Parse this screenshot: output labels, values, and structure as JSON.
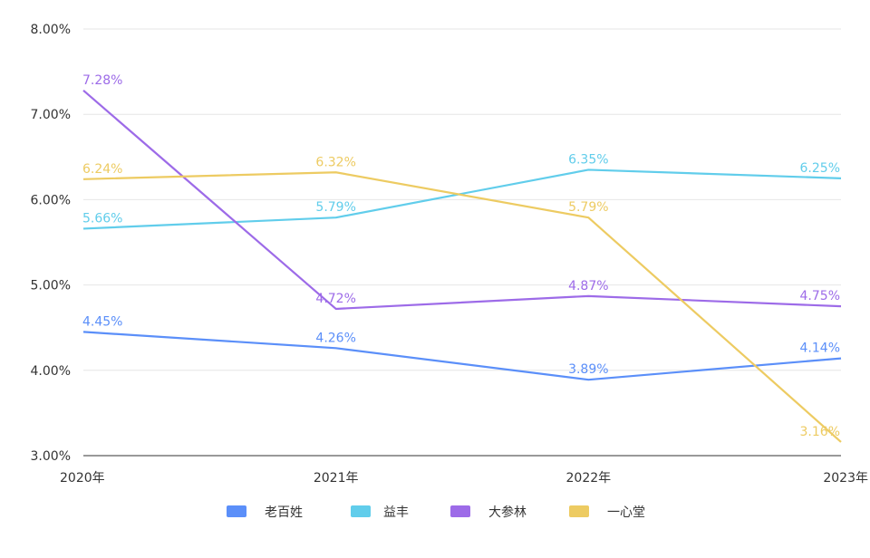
{
  "chart_data": {
    "type": "line",
    "categories": [
      "2020年",
      "2021年",
      "2022年",
      "2023年"
    ],
    "yticks": [
      "3.00%",
      "4.00%",
      "5.00%",
      "6.00%",
      "7.00%",
      "8.00%"
    ],
    "ylim": [
      3.0,
      8.0
    ],
    "grid": true,
    "legend_position": "bottom",
    "series": [
      {
        "name": "老百姓",
        "color": "#5B8FF9",
        "values": [
          4.45,
          4.26,
          3.89,
          4.14
        ],
        "labels": [
          "4.45%",
          "4.26%",
          "3.89%",
          "4.14%"
        ]
      },
      {
        "name": "益丰",
        "color": "#61CDEB",
        "values": [
          5.66,
          5.79,
          6.35,
          6.25
        ],
        "labels": [
          "5.66%",
          "5.79%",
          "6.35%",
          "6.25%"
        ]
      },
      {
        "name": "大参林",
        "color": "#9D6BE8",
        "values": [
          7.28,
          4.72,
          4.87,
          4.75
        ],
        "labels": [
          "7.28%",
          "4.72%",
          "4.87%",
          "4.75%"
        ]
      },
      {
        "name": "一心堂",
        "color": "#EDCB62",
        "values": [
          6.24,
          6.32,
          5.79,
          3.16
        ],
        "labels": [
          "6.24%",
          "6.32%",
          "5.79%",
          "3.16%"
        ]
      }
    ]
  }
}
